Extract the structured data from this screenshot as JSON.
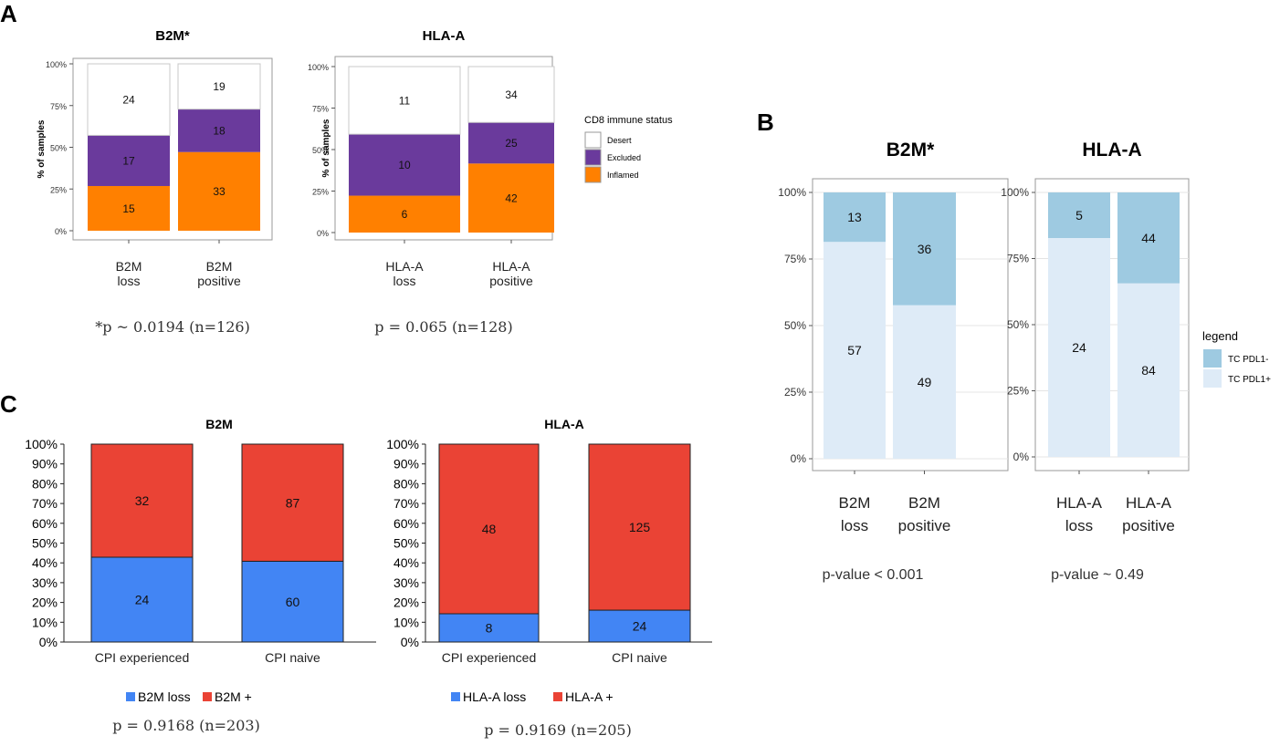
{
  "panel_labels": {
    "a": "A",
    "b": "B",
    "c": "C"
  },
  "colors": {
    "desert": "#ffffff",
    "excluded": "#6a3a9c",
    "inflamed": "#ff8000",
    "tc_neg": "#9ecae1",
    "tc_pos": "#deebf7",
    "loss": "#4285f4",
    "positive": "#ea4335",
    "frame": "#9a9a9a",
    "grid": "#e4e4e4"
  },
  "chart_data": [
    {
      "id": "a1",
      "type": "bar",
      "stacked": true,
      "title": "B2M*",
      "ylabel": "% of samples",
      "yticks": [
        "0%",
        "25%",
        "50%",
        "75%",
        "100%"
      ],
      "categories": [
        [
          "B2M",
          "loss"
        ],
        [
          "B2M",
          "positive"
        ]
      ],
      "series": [
        {
          "name": "Inflamed",
          "color": "#ff8000",
          "values": [
            15,
            33
          ]
        },
        {
          "name": "Excluded",
          "color": "#6a3a9c",
          "values": [
            17,
            18
          ]
        },
        {
          "name": "Desert",
          "color": "#ffffff",
          "values": [
            24,
            19
          ]
        }
      ],
      "annotation": "*p ~ 0.0194 (n=126)"
    },
    {
      "id": "a2",
      "type": "bar",
      "stacked": true,
      "title": "HLA-A",
      "ylabel": "% of samples",
      "yticks": [
        "0%",
        "25%",
        "50%",
        "75%",
        "100%"
      ],
      "categories": [
        [
          "HLA-A",
          "loss"
        ],
        [
          "HLA-A",
          "positive"
        ]
      ],
      "series": [
        {
          "name": "Inflamed",
          "color": "#ff8000",
          "values": [
            6,
            42
          ]
        },
        {
          "name": "Excluded",
          "color": "#6a3a9c",
          "values": [
            10,
            25
          ]
        },
        {
          "name": "Desert",
          "color": "#ffffff",
          "values": [
            11,
            34
          ]
        }
      ],
      "legend": {
        "title": "CD8 immune status",
        "items": [
          {
            "label": "Desert",
            "color": "#ffffff"
          },
          {
            "label": "Excluded",
            "color": "#6a3a9c"
          },
          {
            "label": "Inflamed",
            "color": "#ff8000"
          }
        ]
      },
      "annotation": "p = 0.065 (n=128)"
    },
    {
      "id": "b1",
      "type": "bar",
      "stacked": true,
      "title": "B2M*",
      "yticks": [
        "0%",
        "25%",
        "50%",
        "75%",
        "100%"
      ],
      "categories": [
        [
          "B2M",
          "loss"
        ],
        [
          "B2M",
          "positive"
        ]
      ],
      "series": [
        {
          "name": "TC PDL1+",
          "color": "#deebf7",
          "values": [
            57,
            49
          ]
        },
        {
          "name": "TC PDL1-",
          "color": "#9ecae1",
          "values": [
            13,
            36
          ]
        }
      ],
      "annotation": "p-value < 0.001"
    },
    {
      "id": "b2",
      "type": "bar",
      "stacked": true,
      "title": "HLA-A",
      "yticks": [
        "0%",
        "25%",
        "50%",
        "75%",
        "100%"
      ],
      "categories": [
        [
          "HLA-A",
          "loss"
        ],
        [
          "HLA-A",
          "positive"
        ]
      ],
      "series": [
        {
          "name": "TC PDL1+",
          "color": "#deebf7",
          "values": [
            24,
            84
          ]
        },
        {
          "name": "TC PDL1-",
          "color": "#9ecae1",
          "values": [
            5,
            44
          ]
        }
      ],
      "legend": {
        "title": "legend",
        "items": [
          {
            "label": "TC PDL1-",
            "color": "#9ecae1"
          },
          {
            "label": "TC PDL1+",
            "color": "#deebf7"
          }
        ]
      },
      "annotation": "p-value ~ 0.49"
    },
    {
      "id": "c1",
      "type": "bar",
      "stacked": true,
      "title": "B2M",
      "yticks": [
        "0%",
        "10%",
        "20%",
        "30%",
        "40%",
        "50%",
        "60%",
        "70%",
        "80%",
        "90%",
        "100%"
      ],
      "categories": [
        [
          "CPI experienced"
        ],
        [
          "CPI naive"
        ]
      ],
      "series": [
        {
          "name": "B2M loss",
          "color": "#4285f4",
          "values": [
            24,
            60
          ]
        },
        {
          "name": "B2M +",
          "color": "#ea4335",
          "values": [
            32,
            87
          ]
        }
      ],
      "legend": {
        "items": [
          {
            "label": "B2M loss",
            "color": "#4285f4"
          },
          {
            "label": "B2M +",
            "color": "#ea4335"
          }
        ]
      },
      "annotation": "p = 0.9168 (n=203)"
    },
    {
      "id": "c2",
      "type": "bar",
      "stacked": true,
      "title": "HLA-A",
      "yticks": [
        "0%",
        "10%",
        "20%",
        "30%",
        "40%",
        "50%",
        "60%",
        "70%",
        "80%",
        "90%",
        "100%"
      ],
      "categories": [
        [
          "CPI experienced"
        ],
        [
          "CPI naive"
        ]
      ],
      "series": [
        {
          "name": "HLA-A loss",
          "color": "#4285f4",
          "values": [
            8,
            24
          ]
        },
        {
          "name": "HLA-A +",
          "color": "#ea4335",
          "values": [
            48,
            125
          ]
        }
      ],
      "legend": {
        "items": [
          {
            "label": "HLA-A loss",
            "color": "#4285f4"
          },
          {
            "label": "HLA-A +",
            "color": "#ea4335"
          }
        ]
      },
      "annotation": "p = 0.9169 (n=205)"
    }
  ]
}
